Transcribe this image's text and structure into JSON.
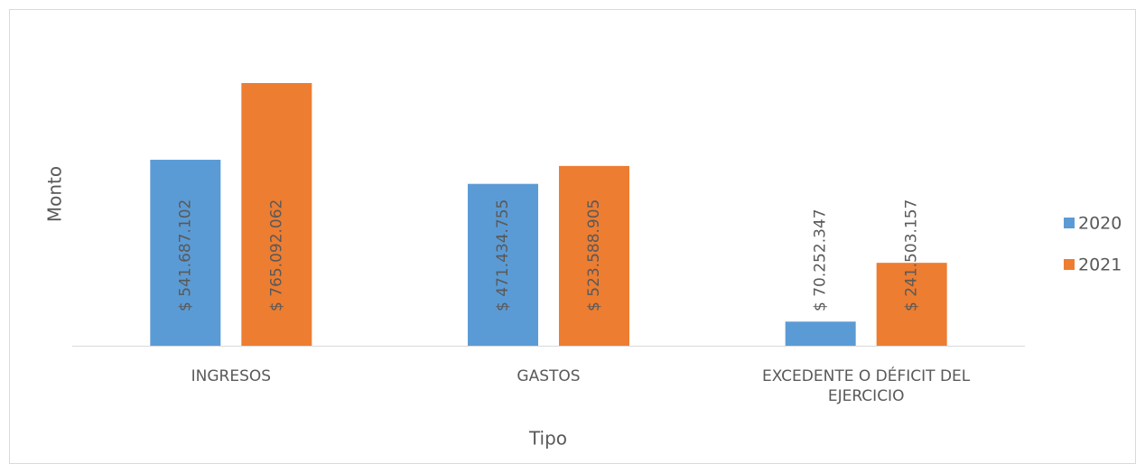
{
  "chart_data": {
    "type": "bar",
    "x_label": "Tipo",
    "y_label": "Monto",
    "categories": [
      "INGRESOS",
      "GASTOS",
      "EXCEDENTE O DÉFICIT DEL EJERCICIO"
    ],
    "series": [
      {
        "name": "2020",
        "color": "#5b9bd5",
        "values": [
          541687102,
          471434755,
          70252347
        ],
        "value_labels": [
          "$ 541.687.102",
          "$ 471.434.755",
          "$ 70.252.347"
        ]
      },
      {
        "name": "2021",
        "color": "#ed7d31",
        "values": [
          765092062,
          523588905,
          241503157
        ],
        "value_labels": [
          "$ 765.092.062",
          "$ 523.588.905",
          "$ 241.503.157"
        ]
      }
    ],
    "legend": "right"
  }
}
